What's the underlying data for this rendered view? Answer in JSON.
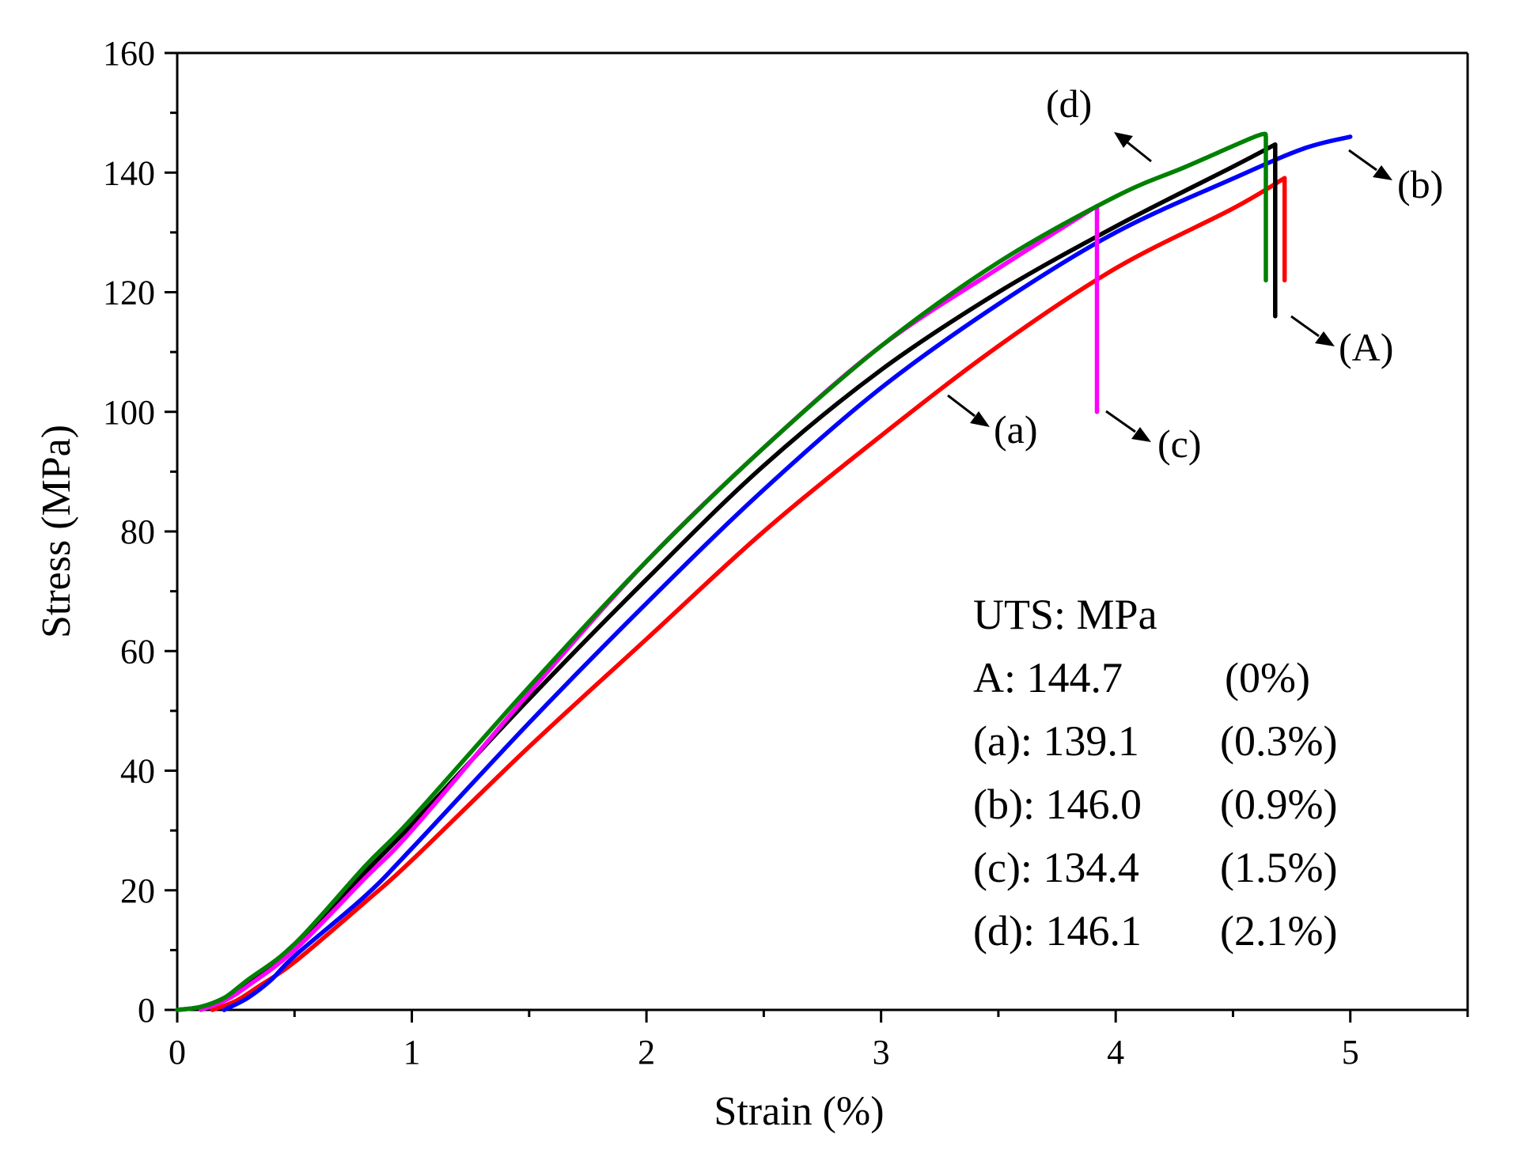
{
  "chart_data": {
    "type": "line",
    "xlabel": "Strain  (%)",
    "ylabel": "Stress  (MPa)",
    "xlim": [
      0,
      5.5
    ],
    "ylim": [
      0,
      160
    ],
    "x_ticks": [
      0,
      1,
      2,
      3,
      4,
      5
    ],
    "y_ticks": [
      0,
      20,
      40,
      60,
      80,
      100,
      120,
      140,
      160
    ],
    "x_tick_labels": [
      "0",
      "1",
      "2",
      "3",
      "4",
      "5"
    ],
    "y_tick_labels": [
      "0",
      "20",
      "40",
      "60",
      "80",
      "100",
      "120",
      "140",
      "160"
    ],
    "series": [
      {
        "name": "A",
        "label": "(A)",
        "color": "#000000",
        "x": [
          0,
          0.1,
          0.2,
          0.3,
          0.5,
          0.8,
          1.0,
          1.5,
          2.0,
          2.5,
          3.0,
          3.5,
          4.0,
          4.5,
          4.68,
          4.68
        ],
        "y": [
          0,
          0.5,
          2,
          4.5,
          11,
          23,
          31,
          52,
          72,
          91,
          107,
          120,
          131,
          141,
          144.7,
          116
        ]
      },
      {
        "name": "a",
        "label": "(a)",
        "color": "#ff0000",
        "x": [
          0.15,
          0.25,
          0.35,
          0.5,
          0.8,
          1.0,
          1.5,
          2.0,
          2.5,
          3.0,
          3.5,
          4.0,
          4.5,
          4.72,
          4.72
        ],
        "y": [
          0,
          1.5,
          4,
          8,
          18,
          25,
          44,
          62,
          80,
          96,
          111,
          124,
          134,
          139.1,
          122
        ]
      },
      {
        "name": "b",
        "label": "(b)",
        "color": "#0000ff",
        "x": [
          0.2,
          0.3,
          0.4,
          0.5,
          0.8,
          1.0,
          1.5,
          2.0,
          2.5,
          3.0,
          3.5,
          4.0,
          4.5,
          4.8,
          5.0
        ],
        "y": [
          0,
          2,
          5,
          9,
          19,
          27,
          48,
          68,
          87,
          104,
          118,
          130,
          139,
          144,
          146.0
        ]
      },
      {
        "name": "c",
        "label": "(c)",
        "color": "#ff00ff",
        "x": [
          0.1,
          0.2,
          0.3,
          0.5,
          0.8,
          1.0,
          1.5,
          2.0,
          2.5,
          3.0,
          3.5,
          3.92,
          3.92
        ],
        "y": [
          0,
          1.5,
          4,
          10,
          22,
          30,
          53,
          75,
          94,
          111,
          124,
          134.4,
          100
        ]
      },
      {
        "name": "d",
        "label": "(d)",
        "color": "#008000",
        "x": [
          0,
          0.1,
          0.2,
          0.3,
          0.5,
          0.8,
          1.0,
          1.5,
          2.0,
          2.5,
          3.0,
          3.5,
          4.0,
          4.3,
          4.6,
          4.64,
          4.64
        ],
        "y": [
          0,
          0.5,
          2,
          5,
          11,
          24,
          32,
          54,
          75,
          94,
          111,
          125,
          136,
          141,
          146.1,
          146.1,
          122
        ]
      }
    ],
    "annotations": [
      "(d)",
      "(b)",
      "(A)",
      "(a)",
      "(c)"
    ],
    "legend_box": {
      "title": "UTS: MPa",
      "rows": [
        {
          "label": "A: 144.7",
          "pct": "(0%)"
        },
        {
          "label": "(a): 139.1",
          "pct": "(0.3%)"
        },
        {
          "label": "(b): 146.0",
          "pct": "(0.9%)"
        },
        {
          "label": "(c): 134.4",
          "pct": "(1.5%)"
        },
        {
          "label": "(d): 146.1",
          "pct": "(2.1%)"
        }
      ]
    }
  }
}
